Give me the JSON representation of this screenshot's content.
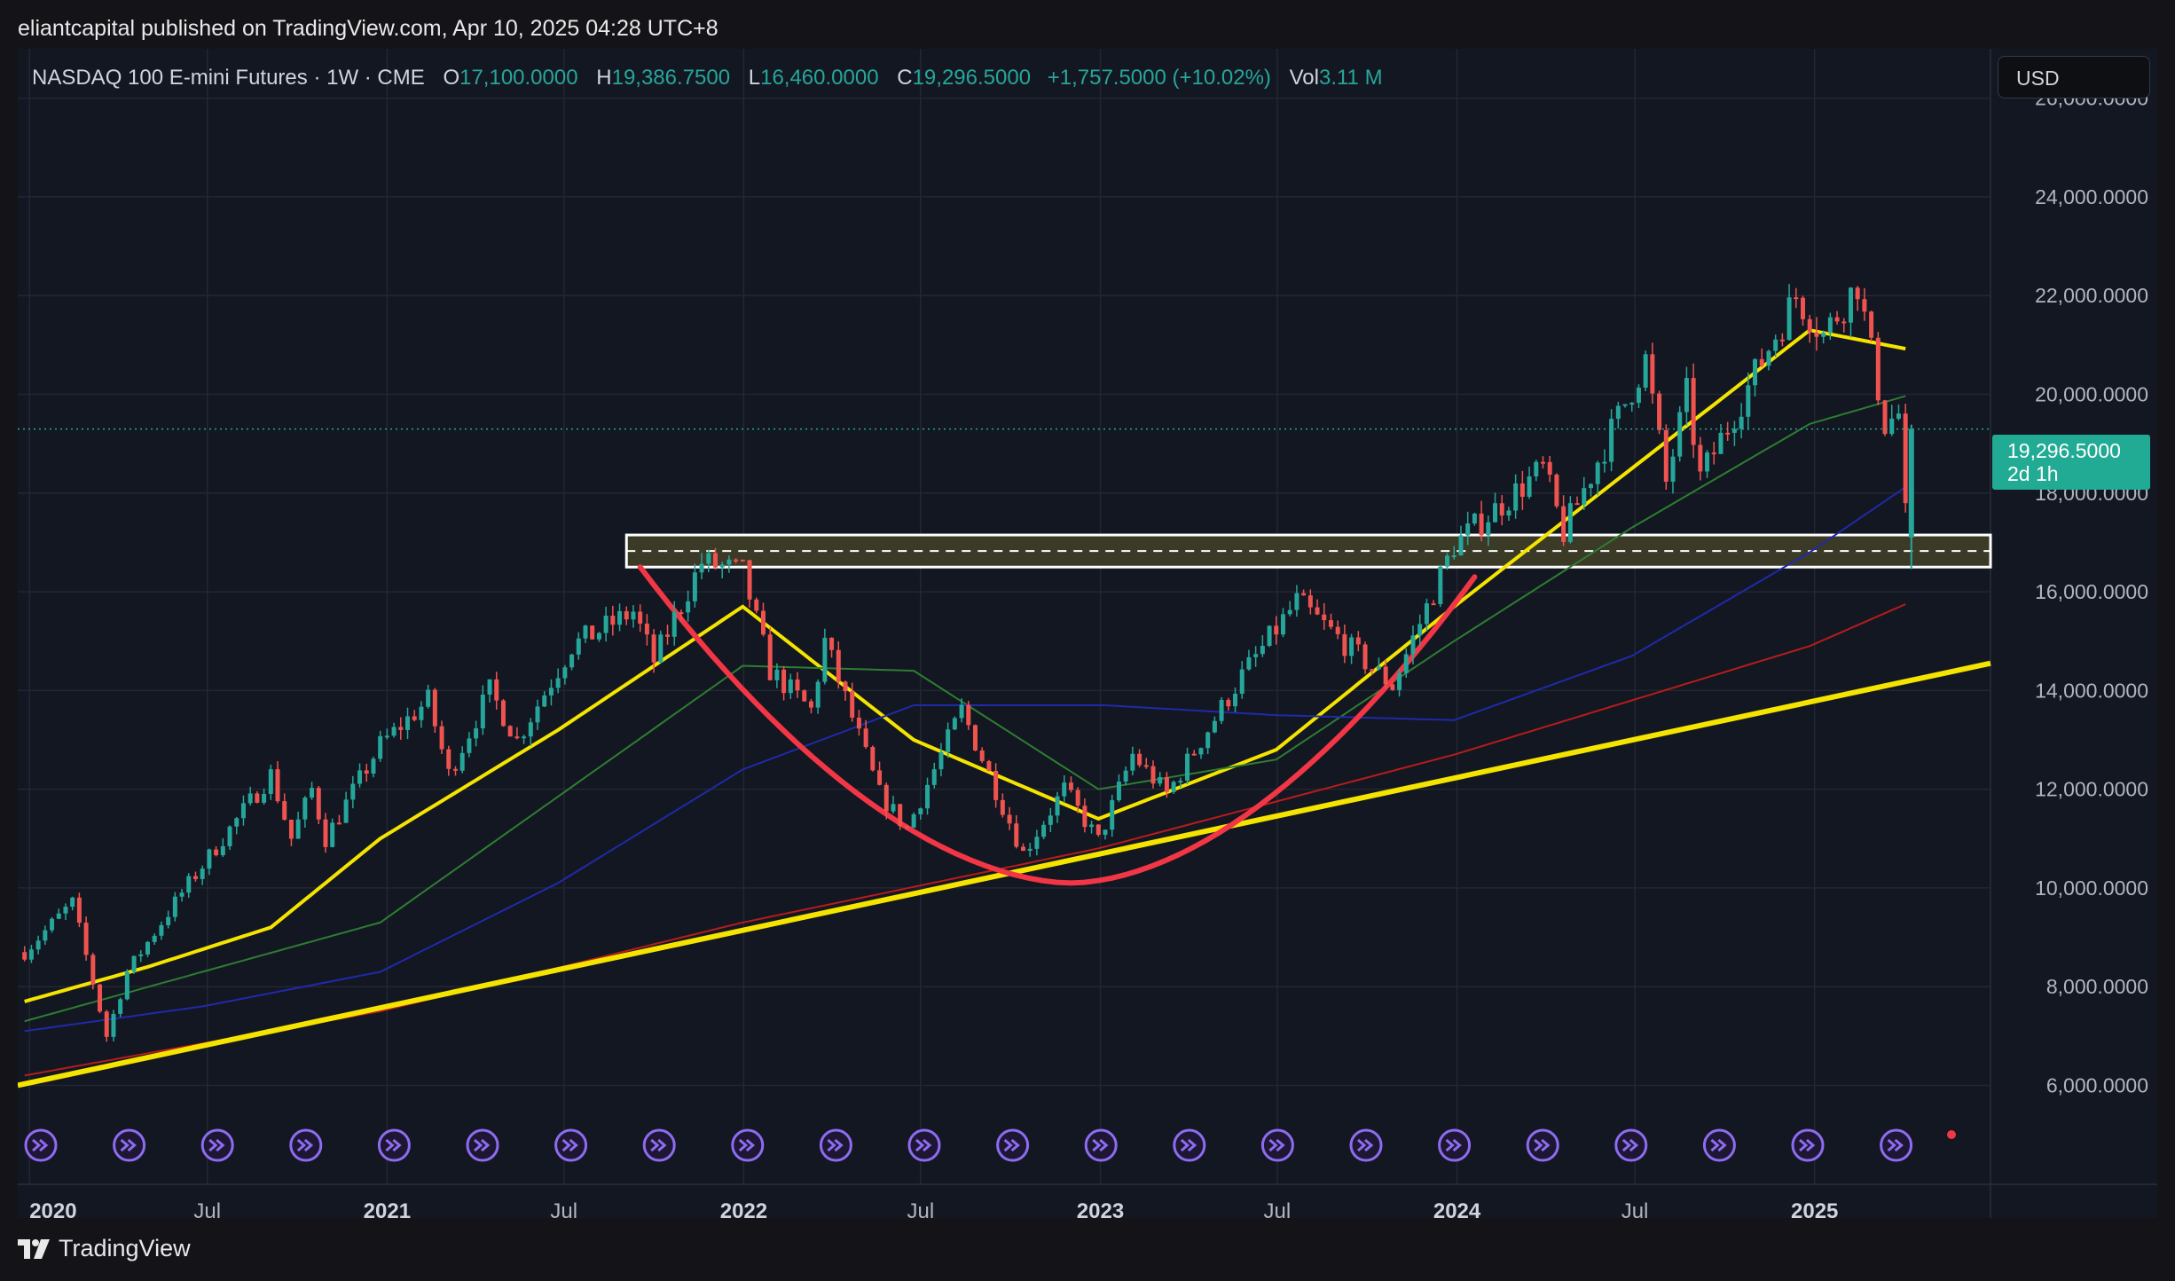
{
  "header": {
    "published_by": "eliantcapital published on TradingView.com, Apr 10, 2025 04:28 UTC+8"
  },
  "legend": {
    "symbol": "NASDAQ 100 E-mini Futures · 1W · CME",
    "open_label": "O",
    "open": "17,100.0000",
    "high_label": "H",
    "high": "19,386.7500",
    "low_label": "L",
    "low": "16,460.0000",
    "close_label": "C",
    "close": "19,296.5000",
    "change": "+1,757.5000 (+10.02%)",
    "vol_label": "Vol",
    "vol": "3.11 M"
  },
  "currency_button": "USD",
  "last_price": {
    "price": "19,296.5000",
    "countdown": "2d 1h"
  },
  "footer": {
    "brand": "TradingView"
  },
  "colors": {
    "up": "#26a69a",
    "down": "#ef5350",
    "background": "#131722",
    "ma_fast": "#f5e400",
    "ma_mid": "#2e7d32",
    "ma_slow": "#1f2aa8",
    "ma_long": "#b71c1c",
    "cup": "#f23645",
    "trendline": "#f5e400",
    "zone_fill": "#3b3a26",
    "grid": "#232732",
    "event_icon": "#8d6cf0"
  },
  "chart_data": {
    "type": "candlestick",
    "title": "",
    "interval": "1W",
    "y_axis": {
      "ticks": [
        6000,
        8000,
        10000,
        12000,
        14000,
        16000,
        18000,
        20000,
        22000,
        24000,
        26000
      ],
      "tick_labels": [
        "6,000.0000",
        "8,000.0000",
        "10,000.0000",
        "12,000.0000",
        "14,000.0000",
        "16,000.0000",
        "18,000.0000",
        "20,000.0000",
        "22,000.0000",
        "24,000.0000",
        "26,000.0000"
      ],
      "range": [
        5200,
        27000
      ]
    },
    "x_axis": {
      "range": [
        "2019-12-20",
        "2025-06-30"
      ],
      "ticks": [
        {
          "date": "2020-01-01",
          "label": "2020",
          "major": true
        },
        {
          "date": "2020-07-01",
          "label": "Jul",
          "major": false
        },
        {
          "date": "2021-01-01",
          "label": "2021",
          "major": true
        },
        {
          "date": "2021-07-01",
          "label": "Jul",
          "major": false
        },
        {
          "date": "2022-01-01",
          "label": "2022",
          "major": true
        },
        {
          "date": "2022-07-01",
          "label": "Jul",
          "major": false
        },
        {
          "date": "2023-01-01",
          "label": "2023",
          "major": true
        },
        {
          "date": "2023-07-01",
          "label": "Jul",
          "major": false
        },
        {
          "date": "2024-01-01",
          "label": "2024",
          "major": true
        },
        {
          "date": "2024-07-01",
          "label": "Jul",
          "major": false
        },
        {
          "date": "2025-01-01",
          "label": "2025",
          "major": true
        }
      ]
    },
    "price_path": [
      [
        "2019-12-27",
        8700
      ],
      [
        "2020-02-14",
        9700
      ],
      [
        "2020-03-20",
        7000
      ],
      [
        "2020-04-10",
        8300
      ],
      [
        "2020-06-05",
        9900
      ],
      [
        "2020-09-04",
        12300
      ],
      [
        "2020-09-25",
        11000
      ],
      [
        "2020-10-16",
        12000
      ],
      [
        "2020-10-30",
        11000
      ],
      [
        "2020-12-25",
        12900
      ],
      [
        "2021-02-12",
        13800
      ],
      [
        "2021-03-05",
        12300
      ],
      [
        "2021-04-16",
        14000
      ],
      [
        "2021-05-14",
        13000
      ],
      [
        "2021-07-09",
        14900
      ],
      [
        "2021-09-10",
        15600
      ],
      [
        "2021-10-01",
        14600
      ],
      [
        "2021-11-19",
        16600
      ],
      [
        "2021-12-31",
        16400
      ],
      [
        "2022-01-28",
        14400
      ],
      [
        "2022-03-11",
        13600
      ],
      [
        "2022-03-25",
        15000
      ],
      [
        "2022-05-20",
        11900
      ],
      [
        "2022-06-17",
        11200
      ],
      [
        "2022-08-12",
        13600
      ],
      [
        "2022-10-14",
        10700
      ],
      [
        "2022-11-25",
        12000
      ],
      [
        "2022-12-30",
        10950
      ],
      [
        "2023-02-03",
        12700
      ],
      [
        "2023-03-10",
        11900
      ],
      [
        "2023-05-26",
        14300
      ],
      [
        "2023-07-21",
        15800
      ],
      [
        "2023-10-27",
        14100
      ],
      [
        "2023-12-29",
        16950
      ],
      [
        "2024-03-29",
        18500
      ],
      [
        "2024-04-19",
        17200
      ],
      [
        "2024-07-12",
        20700
      ],
      [
        "2024-08-02",
        18200
      ],
      [
        "2024-08-23",
        20000
      ],
      [
        "2024-09-06",
        18300
      ],
      [
        "2024-12-13",
        22000
      ],
      [
        "2025-01-10",
        21200
      ],
      [
        "2025-02-14",
        22250
      ],
      [
        "2025-03-14",
        19400
      ],
      [
        "2025-03-28",
        19600
      ],
      [
        "2025-04-04",
        17539
      ],
      [
        "2025-04-10",
        19296.5
      ]
    ],
    "moving_averages": [
      {
        "color": "#f5e400",
        "points": [
          [
            "2019-12-27",
            7700
          ],
          [
            "2020-05-01",
            8400
          ],
          [
            "2020-09-04",
            9200
          ],
          [
            "2020-12-25",
            11000
          ],
          [
            "2021-06-25",
            13200
          ],
          [
            "2021-12-31",
            15700
          ],
          [
            "2022-06-24",
            13000
          ],
          [
            "2022-12-30",
            11400
          ],
          [
            "2023-06-30",
            12800
          ],
          [
            "2023-12-29",
            15700
          ],
          [
            "2024-06-28",
            18500
          ],
          [
            "2024-12-27",
            21300
          ],
          [
            "2025-04-10",
            20900
          ]
        ]
      },
      {
        "color": "#2e7d32",
        "points": [
          [
            "2019-12-27",
            7300
          ],
          [
            "2020-12-25",
            9300
          ],
          [
            "2021-12-31",
            14500
          ],
          [
            "2022-06-24",
            14400
          ],
          [
            "2022-12-30",
            12000
          ],
          [
            "2023-06-30",
            12600
          ],
          [
            "2023-12-29",
            15000
          ],
          [
            "2024-06-28",
            17300
          ],
          [
            "2024-12-27",
            19400
          ],
          [
            "2025-04-10",
            20000
          ]
        ]
      },
      {
        "color": "#1f2aa8",
        "points": [
          [
            "2019-12-27",
            7100
          ],
          [
            "2020-06-26",
            7600
          ],
          [
            "2020-12-25",
            8300
          ],
          [
            "2021-06-25",
            10100
          ],
          [
            "2021-12-31",
            12400
          ],
          [
            "2022-06-24",
            13700
          ],
          [
            "2023-01-06",
            13700
          ],
          [
            "2023-06-30",
            13500
          ],
          [
            "2023-12-29",
            13400
          ],
          [
            "2024-06-28",
            14700
          ],
          [
            "2024-12-27",
            16800
          ],
          [
            "2025-04-10",
            18200
          ]
        ]
      },
      {
        "color": "#b71c1c",
        "points": [
          [
            "2019-12-27",
            6200
          ],
          [
            "2020-12-25",
            7500
          ],
          [
            "2021-12-31",
            9300
          ],
          [
            "2022-12-30",
            10800
          ],
          [
            "2023-12-29",
            12700
          ],
          [
            "2024-12-27",
            14900
          ],
          [
            "2025-04-10",
            15800
          ]
        ]
      }
    ],
    "last_price_line": 19296.5,
    "drawings": {
      "support_zone": {
        "from": "2021-09-03",
        "to": "2025-06-30",
        "low": 16500,
        "high": 17150,
        "mid": 16825
      },
      "cup_arc": {
        "start": [
          "2021-09-17",
          16500
        ],
        "bottom": [
          "2022-12-02",
          10100
        ],
        "end": [
          "2024-01-19",
          16300
        ]
      },
      "trendline": {
        "start": [
          "2019-12-20",
          6000
        ],
        "end": [
          "2025-06-30",
          14550
        ]
      }
    }
  }
}
